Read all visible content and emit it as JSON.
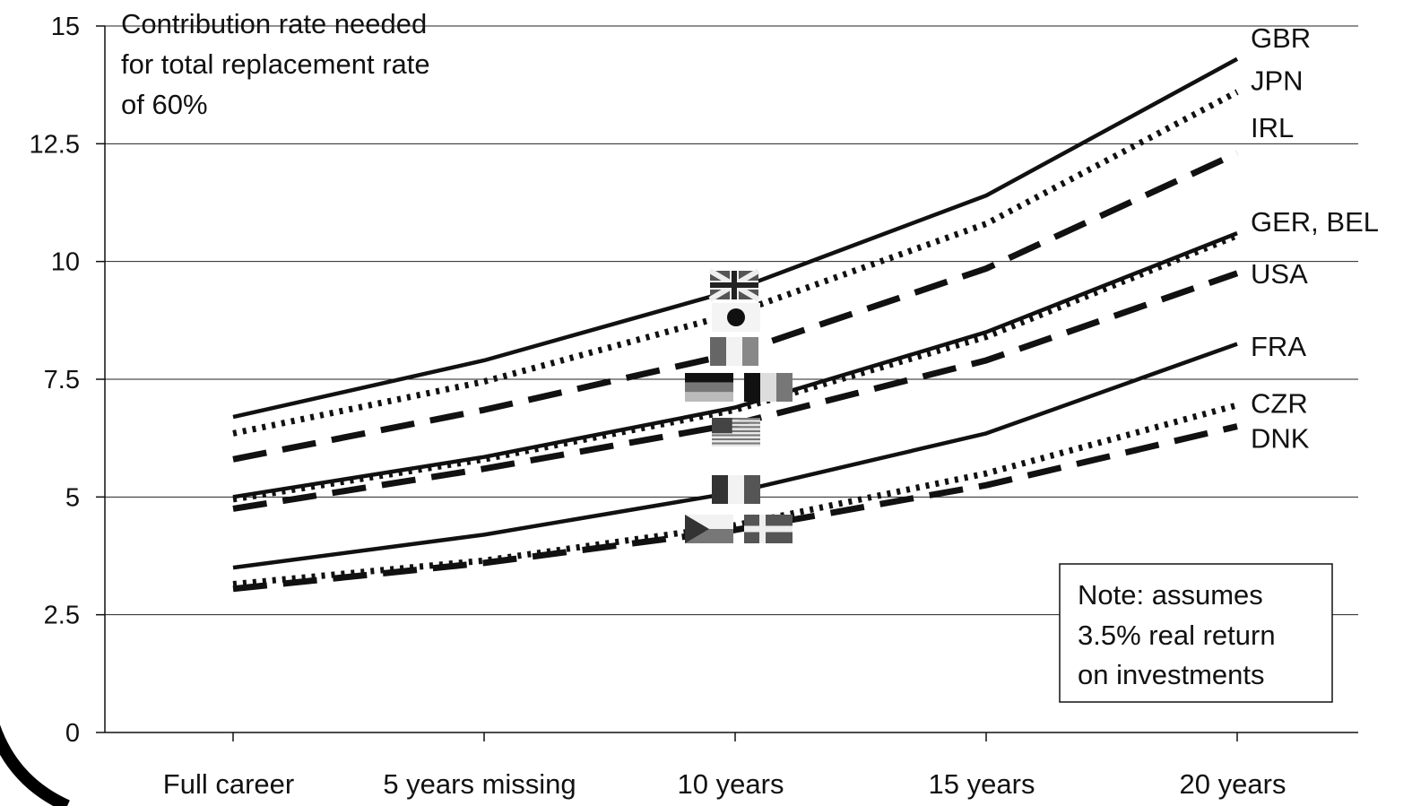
{
  "chart_data": {
    "type": "line",
    "title_lines": [
      "Contribution rate needed",
      "for total replacement rate",
      "of 60%"
    ],
    "categories": [
      "Full career",
      "5 years missing",
      "10 years",
      "15 years",
      "20 years"
    ],
    "ylim": [
      0,
      15
    ],
    "yticks": [
      "0",
      "2.5",
      "5",
      "7.5",
      "10",
      "12.5",
      "15"
    ],
    "grid": true,
    "series": [
      {
        "name": "GBR",
        "values": [
          6.7,
          7.9,
          9.4,
          11.4,
          14.3
        ],
        "style": "solid"
      },
      {
        "name": "JPN",
        "values": [
          6.35,
          7.45,
          8.9,
          10.8,
          13.6
        ],
        "style": "dotted"
      },
      {
        "name": "IRL",
        "values": [
          5.8,
          6.85,
          8.05,
          9.85,
          12.3
        ],
        "style": "dashed"
      },
      {
        "name": "GER",
        "values": [
          5.0,
          5.85,
          6.9,
          8.5,
          10.6
        ],
        "style": "solid"
      },
      {
        "name": "BEL",
        "values": [
          4.95,
          5.8,
          6.85,
          8.4,
          10.55
        ],
        "style": "dotted"
      },
      {
        "name": "USA",
        "values": [
          4.75,
          5.6,
          6.55,
          7.9,
          9.75
        ],
        "style": "dashed"
      },
      {
        "name": "FRA",
        "values": [
          3.5,
          4.2,
          5.1,
          6.35,
          8.25
        ],
        "style": "solid"
      },
      {
        "name": "CZR",
        "values": [
          3.15,
          3.65,
          4.4,
          5.5,
          6.95
        ],
        "style": "dotted"
      },
      {
        "name": "DNK",
        "values": [
          3.05,
          3.6,
          4.3,
          5.25,
          6.5
        ],
        "style": "dashed"
      }
    ],
    "end_labels": [
      {
        "text": "GBR",
        "y": 14.75
      },
      {
        "text": "JPN",
        "y": 13.85
      },
      {
        "text": "IRL",
        "y": 12.85
      },
      {
        "text": "GER, BEL",
        "y": 10.85
      },
      {
        "text": "USA",
        "y": 9.75
      },
      {
        "text": "FRA",
        "y": 8.2
      },
      {
        "text": "CZR",
        "y": 7.0
      },
      {
        "text": "DNK",
        "y": 6.25
      }
    ],
    "note_lines": [
      "Note: assumes",
      "3.5% real return",
      "on investments"
    ],
    "flags": [
      "gbr-flag",
      "jpn-flag",
      "irl-flag",
      "ger-flag",
      "bel-flag",
      "usa-flag",
      "fra-flag",
      "czr-flag",
      "dnk-flag"
    ],
    "line_color": "#111111"
  }
}
